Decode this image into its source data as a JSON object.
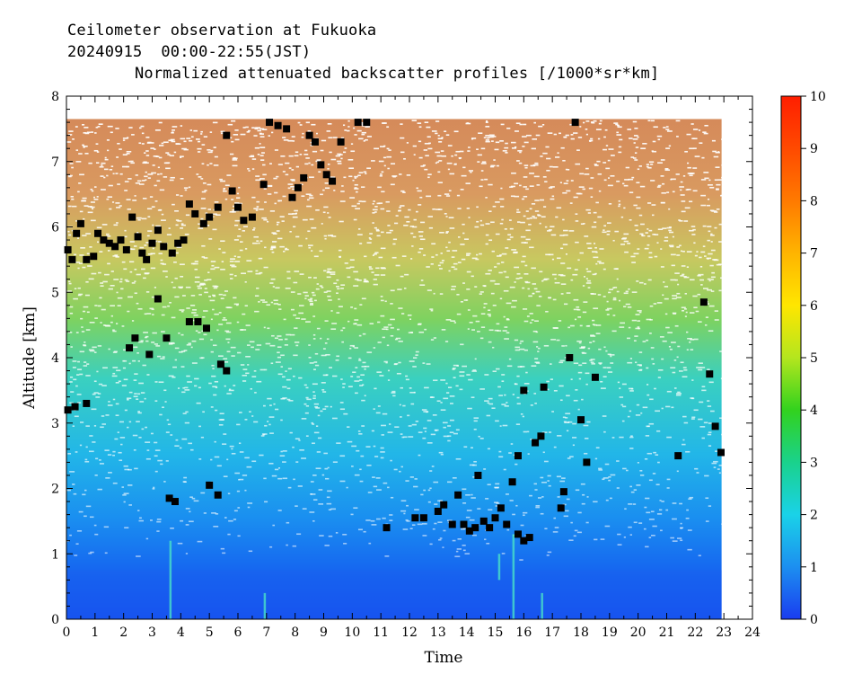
{
  "header": {
    "line1": "Ceilometer observation at Fukuoka",
    "line2": "20240915  00:00-22:55(JST)",
    "line3": "Normalized attenuated backscatter profiles [/1000*sr*km]"
  },
  "chart_data": {
    "type": "heatmap",
    "station": "Fukuoka",
    "date": "20240915",
    "time_range": "00:00-22:55(JST)",
    "xlabel": "Time",
    "ylabel": "Altitude [km]",
    "xlim": [
      0,
      24
    ],
    "ylim": [
      0,
      8
    ],
    "x_ticks": [
      "0",
      "1",
      "2",
      "3",
      "4",
      "5",
      "6",
      "7",
      "8",
      "9",
      "10",
      "11",
      "12",
      "13",
      "14",
      "15",
      "16",
      "17",
      "18",
      "19",
      "20",
      "21",
      "22",
      "23",
      "24"
    ],
    "y_ticks": [
      "0",
      "1",
      "2",
      "3",
      "4",
      "5",
      "6",
      "7",
      "8"
    ],
    "data_extent": {
      "time_end": 22.92,
      "altitude_top": 7.65
    },
    "colorbar": {
      "min": 0,
      "max": 10,
      "ticks": [
        "0",
        "1",
        "2",
        "3",
        "4",
        "5",
        "6",
        "7",
        "8",
        "9",
        "10"
      ],
      "colors": [
        "#1a3cf0",
        "#1c8ff0",
        "#1ad2e8",
        "#1ad28c",
        "#32d21e",
        "#b4e61e",
        "#ffe600",
        "#ffb400",
        "#ff7a00",
        "#ff4a00",
        "#ff1e00"
      ]
    },
    "backscatter_layer": {
      "description_values": [
        {
          "altitude_band": [
            0,
            0.6
          ],
          "level": 0.6
        },
        {
          "altitude_band": [
            0.6,
            1.6
          ],
          "level": 1.0
        },
        {
          "altitude_band": [
            1.6,
            3.0
          ],
          "level": 1.6
        },
        {
          "altitude_band": [
            3.0,
            5.0
          ],
          "level": 2.8
        },
        {
          "altitude_band": [
            5.0,
            7.65
          ],
          "level": 5.5
        }
      ]
    },
    "cloud_base_points": [
      {
        "t": 0.05,
        "z": 5.65
      },
      {
        "t": 0.2,
        "z": 5.5
      },
      {
        "t": 0.35,
        "z": 5.9
      },
      {
        "t": 0.5,
        "z": 6.05
      },
      {
        "t": 0.7,
        "z": 5.5
      },
      {
        "t": 0.95,
        "z": 5.55
      },
      {
        "t": 1.1,
        "z": 5.9
      },
      {
        "t": 1.3,
        "z": 5.8
      },
      {
        "t": 1.5,
        "z": 5.75
      },
      {
        "t": 1.7,
        "z": 5.7
      },
      {
        "t": 1.9,
        "z": 5.8
      },
      {
        "t": 2.1,
        "z": 5.65
      },
      {
        "t": 2.3,
        "z": 6.15
      },
      {
        "t": 2.5,
        "z": 5.85
      },
      {
        "t": 2.65,
        "z": 5.6
      },
      {
        "t": 2.8,
        "z": 5.5
      },
      {
        "t": 3.0,
        "z": 5.75
      },
      {
        "t": 3.2,
        "z": 5.95
      },
      {
        "t": 3.4,
        "z": 5.7
      },
      {
        "t": 3.7,
        "z": 5.6
      },
      {
        "t": 3.9,
        "z": 5.75
      },
      {
        "t": 4.1,
        "z": 5.8
      },
      {
        "t": 4.3,
        "z": 6.35
      },
      {
        "t": 4.5,
        "z": 6.2
      },
      {
        "t": 4.8,
        "z": 6.05
      },
      {
        "t": 5.0,
        "z": 6.15
      },
      {
        "t": 5.3,
        "z": 6.3
      },
      {
        "t": 5.6,
        "z": 7.4
      },
      {
        "t": 5.8,
        "z": 6.55
      },
      {
        "t": 6.0,
        "z": 6.3
      },
      {
        "t": 6.2,
        "z": 6.1
      },
      {
        "t": 6.5,
        "z": 6.15
      },
      {
        "t": 6.9,
        "z": 6.65
      },
      {
        "t": 7.1,
        "z": 7.6
      },
      {
        "t": 7.4,
        "z": 7.55
      },
      {
        "t": 7.7,
        "z": 7.5
      },
      {
        "t": 7.9,
        "z": 6.45
      },
      {
        "t": 8.1,
        "z": 6.6
      },
      {
        "t": 8.3,
        "z": 6.75
      },
      {
        "t": 8.5,
        "z": 7.4
      },
      {
        "t": 8.7,
        "z": 7.3
      },
      {
        "t": 8.9,
        "z": 6.95
      },
      {
        "t": 9.1,
        "z": 6.8
      },
      {
        "t": 9.3,
        "z": 6.7
      },
      {
        "t": 9.6,
        "z": 7.3
      },
      {
        "t": 10.2,
        "z": 7.6
      },
      {
        "t": 10.5,
        "z": 7.6
      },
      {
        "t": 0.05,
        "z": 3.2
      },
      {
        "t": 0.3,
        "z": 3.25
      },
      {
        "t": 0.7,
        "z": 3.3
      },
      {
        "t": 2.2,
        "z": 4.15
      },
      {
        "t": 2.4,
        "z": 4.3
      },
      {
        "t": 2.9,
        "z": 4.05
      },
      {
        "t": 3.2,
        "z": 4.9
      },
      {
        "t": 3.5,
        "z": 4.3
      },
      {
        "t": 4.3,
        "z": 4.55
      },
      {
        "t": 4.6,
        "z": 4.55
      },
      {
        "t": 4.9,
        "z": 4.45
      },
      {
        "t": 5.4,
        "z": 3.9
      },
      {
        "t": 5.6,
        "z": 3.8
      },
      {
        "t": 3.6,
        "z": 1.85
      },
      {
        "t": 3.8,
        "z": 1.8
      },
      {
        "t": 5.0,
        "z": 2.05
      },
      {
        "t": 5.3,
        "z": 1.9
      },
      {
        "t": 11.2,
        "z": 1.4
      },
      {
        "t": 12.2,
        "z": 1.55
      },
      {
        "t": 12.5,
        "z": 1.55
      },
      {
        "t": 13.0,
        "z": 1.65
      },
      {
        "t": 13.2,
        "z": 1.75
      },
      {
        "t": 13.5,
        "z": 1.45
      },
      {
        "t": 13.7,
        "z": 1.9
      },
      {
        "t": 13.9,
        "z": 1.45
      },
      {
        "t": 14.1,
        "z": 1.35
      },
      {
        "t": 14.3,
        "z": 1.4
      },
      {
        "t": 14.4,
        "z": 2.2
      },
      {
        "t": 14.6,
        "z": 1.5
      },
      {
        "t": 14.8,
        "z": 1.4
      },
      {
        "t": 15.0,
        "z": 1.55
      },
      {
        "t": 15.2,
        "z": 1.7
      },
      {
        "t": 15.4,
        "z": 1.45
      },
      {
        "t": 15.6,
        "z": 2.1
      },
      {
        "t": 15.8,
        "z": 1.3
      },
      {
        "t": 16.0,
        "z": 1.2
      },
      {
        "t": 16.2,
        "z": 1.25
      },
      {
        "t": 16.4,
        "z": 2.7
      },
      {
        "t": 16.6,
        "z": 2.8
      },
      {
        "t": 16.7,
        "z": 3.55
      },
      {
        "t": 16.0,
        "z": 3.5
      },
      {
        "t": 15.8,
        "z": 2.5
      },
      {
        "t": 17.3,
        "z": 1.7
      },
      {
        "t": 17.4,
        "z": 1.95
      },
      {
        "t": 17.6,
        "z": 4.0
      },
      {
        "t": 18.0,
        "z": 3.05
      },
      {
        "t": 18.2,
        "z": 2.4
      },
      {
        "t": 18.5,
        "z": 3.7
      },
      {
        "t": 17.8,
        "z": 7.6
      },
      {
        "t": 21.4,
        "z": 2.5
      },
      {
        "t": 22.3,
        "z": 4.85
      },
      {
        "t": 22.5,
        "z": 3.75
      },
      {
        "t": 22.7,
        "z": 2.95
      },
      {
        "t": 22.9,
        "z": 2.55
      }
    ]
  }
}
